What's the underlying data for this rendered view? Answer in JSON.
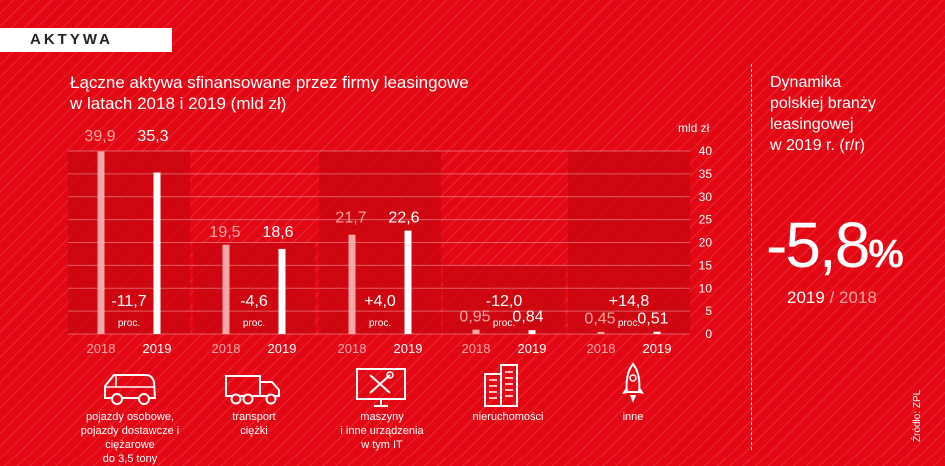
{
  "tag": "AKTYWA",
  "title_lines": [
    "Łączne aktywa sfinansowane przez firmy leasingowe",
    "w latach 2018 i 2019 (mld zł)"
  ],
  "unit": "mld zł",
  "side": {
    "title_lines": [
      "Dynamika",
      "polskiej branży",
      "leasingowej",
      "w 2019 r. (r/r)"
    ],
    "value": "-5,8",
    "percent_sign": "%",
    "year_current": "2019",
    "year_sep": "/",
    "year_prev": "2018"
  },
  "source": "Źródło: ZPL",
  "colors": {
    "background": "#e30613",
    "bar_2018": "#f5a6a6",
    "bar_2019": "#ffffff",
    "band": "#c8050f"
  },
  "chart_data": {
    "type": "bar",
    "y_unit": "mld zł",
    "ylim": [
      0,
      40
    ],
    "yticks": [
      0,
      5,
      10,
      15,
      20,
      25,
      30,
      35,
      40
    ],
    "grid": true,
    "categories": [
      {
        "label_lines": [
          "pojazdy osobowe,",
          "pojazdy dostawcze i ciężarowe",
          "do 3,5 tony"
        ],
        "icon": "car-icon",
        "v2018": 39.9,
        "v2019": 35.3,
        "l2018": "39,9",
        "l2019": "35,3",
        "change": "-11,7",
        "change_unit": "proc.",
        "band_top": 40
      },
      {
        "label_lines": [
          "transport",
          "ciężki"
        ],
        "icon": "truck-icon",
        "v2018": 19.5,
        "v2019": 18.6,
        "l2018": "19,5",
        "l2019": "18,6",
        "change": "-4,6",
        "change_unit": "proc.",
        "band_top": 20
      },
      {
        "label_lines": [
          "maszyny",
          "i inne urządzenia",
          "w tym IT"
        ],
        "icon": "machinery-icon",
        "v2018": 21.7,
        "v2019": 22.6,
        "l2018": "21,7",
        "l2019": "22,6",
        "change": "+4,0",
        "change_unit": "proc.",
        "band_top": 40
      },
      {
        "label_lines": [
          "nieruchomości"
        ],
        "icon": "buildings-icon",
        "v2018": 0.95,
        "v2019": 0.84,
        "l2018": "0,95",
        "l2019": "0,84",
        "change": "-12,0",
        "change_unit": "proc.",
        "band_top": 15
      },
      {
        "label_lines": [
          "inne"
        ],
        "icon": "rocket-icon",
        "v2018": 0.45,
        "v2019": 0.51,
        "l2018": "0,45",
        "l2019": "0,51",
        "change": "+14,8",
        "change_unit": "proc.",
        "band_top": 40
      }
    ],
    "series": [
      {
        "name": "2018",
        "values": [
          39.9,
          19.5,
          21.7,
          0.95,
          0.45
        ]
      },
      {
        "name": "2019",
        "values": [
          35.3,
          18.6,
          22.6,
          0.84,
          0.51
        ]
      }
    ],
    "x_year_labels": [
      "2018",
      "2019"
    ]
  }
}
